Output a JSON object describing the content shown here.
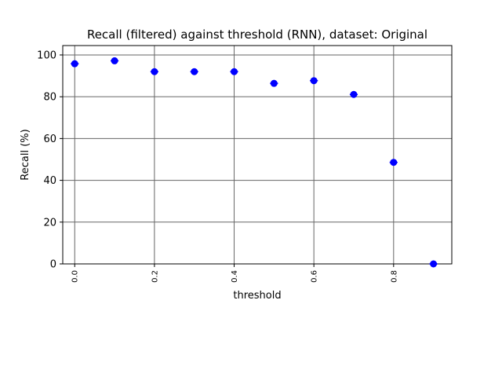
{
  "chart_data": {
    "type": "scatter",
    "title": "Recall (filtered) against threshold (RNN), dataset: Original",
    "xlabel": "threshold",
    "ylabel": "Recall (%)",
    "xlim": [
      -0.03,
      0.946
    ],
    "ylim": [
      0,
      104.5
    ],
    "xticks": [
      "0.0",
      "0.2",
      "0.4",
      "0.6",
      "0.8"
    ],
    "yticks": [
      "0",
      "20",
      "40",
      "60",
      "80",
      "100"
    ],
    "grid": true,
    "color": "#0000ff",
    "series": [
      {
        "x": [
          0.0,
          0.1,
          0.2,
          0.3,
          0.4,
          0.5,
          0.6,
          0.7,
          0.8,
          0.9
        ],
        "y": [
          95.8,
          97.2,
          92.0,
          92.0,
          92.0,
          86.4,
          87.7,
          81.1,
          48.6,
          0.0
        ],
        "xerr": 0.02
      }
    ]
  }
}
